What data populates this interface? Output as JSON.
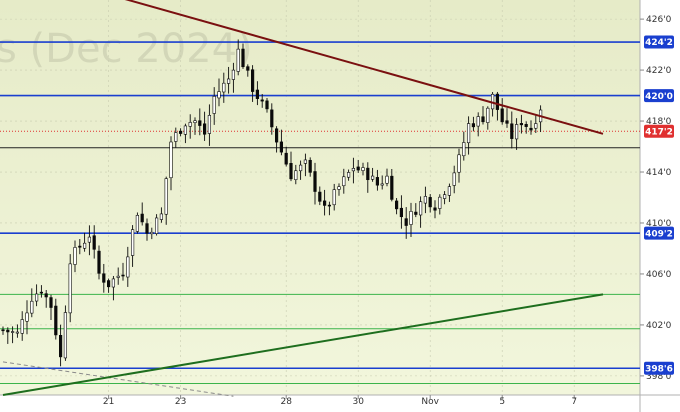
{
  "chart_data": {
    "type": "candlestick",
    "watermark": "s (Dec 2024)",
    "y_axis": {
      "min": 396.5,
      "max": 427.5,
      "tick_values": [
        398,
        402,
        406,
        410,
        414,
        418,
        422,
        426
      ],
      "tick_labels": [
        "398'0",
        "402'0",
        "406'0",
        "410'0",
        "414'0",
        "418'0",
        "422'0",
        "426'0"
      ]
    },
    "x_axis": {
      "tick_labels": [
        "21",
        "23",
        "28",
        "30",
        "Nov",
        "5",
        "7"
      ],
      "tick_index": [
        22,
        37,
        59,
        74,
        89,
        104,
        119
      ]
    },
    "bar_count": 125,
    "close_anchors": [
      [
        0,
        401.6
      ],
      [
        3,
        401.3
      ],
      [
        6,
        404.2
      ],
      [
        8,
        404.8
      ],
      [
        10,
        403.5
      ],
      [
        12,
        399.4
      ],
      [
        14,
        407.2
      ],
      [
        18,
        409.1
      ],
      [
        20,
        406.0
      ],
      [
        22,
        405.2
      ],
      [
        25,
        406.2
      ],
      [
        28,
        410.9
      ],
      [
        30,
        409.2
      ],
      [
        33,
        410.6
      ],
      [
        35,
        416.4
      ],
      [
        38,
        417.9
      ],
      [
        40,
        418.0
      ],
      [
        42,
        417.0
      ],
      [
        44,
        419.9
      ],
      [
        47,
        421.3
      ],
      [
        49,
        423.5
      ],
      [
        52,
        420.6
      ],
      [
        55,
        418.6
      ],
      [
        57,
        416.5
      ],
      [
        60,
        413.8
      ],
      [
        63,
        414.6
      ],
      [
        65,
        412.8
      ],
      [
        67,
        411.0
      ],
      [
        70,
        412.8
      ],
      [
        73,
        414.4
      ],
      [
        76,
        413.8
      ],
      [
        78,
        413.0
      ],
      [
        80,
        413.6
      ],
      [
        82,
        411.0
      ],
      [
        84,
        410.1
      ],
      [
        86,
        411.1
      ],
      [
        88,
        412.0
      ],
      [
        90,
        411.4
      ],
      [
        93,
        413.2
      ],
      [
        95,
        415.0
      ],
      [
        97,
        417.7
      ],
      [
        100,
        418.3
      ],
      [
        102,
        419.9
      ],
      [
        104,
        418.0
      ],
      [
        106,
        416.8
      ],
      [
        108,
        418.0
      ],
      [
        110,
        417.4
      ],
      [
        112,
        419.1
      ]
    ],
    "price_lines": [
      {
        "value": 424.2,
        "label": "424'2",
        "color": "#1a3fcf"
      },
      {
        "value": 420.0,
        "label": "420'0",
        "color": "#1a3fcf"
      },
      {
        "value": 409.2,
        "label": "409'2",
        "color": "#1a3fcf"
      },
      {
        "value": 398.6,
        "label": "398'6",
        "color": "#1a3fcf"
      },
      {
        "value": 415.9,
        "label": "",
        "color": "#222222"
      }
    ],
    "green_levels": [
      404.4,
      401.7,
      397.4
    ],
    "current_price": {
      "value": 417.2,
      "label": "417'2",
      "color": "#e03030"
    },
    "trendlines": [
      {
        "from": [
          12,
          429.0
        ],
        "to": [
          125,
          417.0
        ],
        "color": "#7a1010"
      },
      {
        "from": [
          0,
          396.5
        ],
        "to": [
          125,
          404.4
        ],
        "color": "#1e6e1e"
      }
    ],
    "dashed_line": {
      "from": [
        0,
        399.1
      ],
      "to": [
        48,
        396.4
      ]
    },
    "colors": {
      "candle": "#0a0a0a",
      "grid": "#c8ccb0",
      "background": "#eef0d2"
    }
  }
}
